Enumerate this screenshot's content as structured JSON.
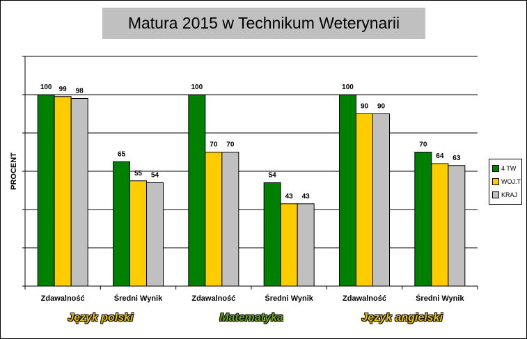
{
  "chart_data": {
    "type": "bar",
    "title": "Matura 2015 w Technikum Weterynarii",
    "ylabel": "PROCENT",
    "xlabel": "",
    "ylim": [
      0,
      100
    ],
    "grid": true,
    "legend_position": "right",
    "categories": [
      "Zdawalność",
      "Średni Wynik",
      "Zdawalność",
      "Średni Wynik",
      "Zdawalność",
      "Średni Wynik"
    ],
    "groups": [
      {
        "label": "Język polski",
        "color": "#e8c200"
      },
      {
        "label": "Matematyka",
        "color": "#6aa800"
      },
      {
        "label": "Język angielski",
        "color": "#e8c200"
      }
    ],
    "series": [
      {
        "name": "4 TW",
        "color": "#008000",
        "values": [
          100,
          65,
          100,
          54,
          100,
          70
        ]
      },
      {
        "name": "WOJ.T",
        "color": "#ffcc00",
        "values": [
          99,
          55,
          70,
          43,
          90,
          64
        ]
      },
      {
        "name": "KRAJ",
        "color": "#c0c0c0",
        "values": [
          98,
          54,
          70,
          43,
          90,
          63
        ]
      }
    ]
  }
}
